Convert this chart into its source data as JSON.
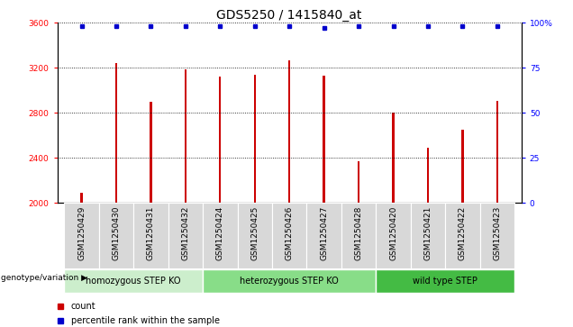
{
  "title": "GDS5250 / 1415840_at",
  "samples": [
    "GSM1250429",
    "GSM1250430",
    "GSM1250431",
    "GSM1250432",
    "GSM1250424",
    "GSM1250425",
    "GSM1250426",
    "GSM1250427",
    "GSM1250428",
    "GSM1250420",
    "GSM1250421",
    "GSM1250422",
    "GSM1250423"
  ],
  "counts": [
    2090,
    3240,
    2900,
    3190,
    3120,
    3140,
    3270,
    3130,
    2370,
    2800,
    2490,
    2650,
    2910
  ],
  "percentiles": [
    98,
    98,
    98,
    98,
    98,
    98,
    98,
    97,
    98,
    98,
    98,
    98,
    98
  ],
  "ymin": 2000,
  "ymax": 3600,
  "yticks": [
    2000,
    2400,
    2800,
    3200,
    3600
  ],
  "right_yticks": [
    0,
    25,
    50,
    75,
    100
  ],
  "right_yticklabels": [
    "0",
    "25",
    "50",
    "75",
    "100%"
  ],
  "bar_color": "#cc0000",
  "dot_color": "#0000cc",
  "groups": [
    {
      "label": "homozygous STEP KO",
      "start": 0,
      "end": 4,
      "color": "#cceecc"
    },
    {
      "label": "heterozygous STEP KO",
      "start": 4,
      "end": 9,
      "color": "#88dd88"
    },
    {
      "label": "wild type STEP",
      "start": 9,
      "end": 13,
      "color": "#44bb44"
    }
  ],
  "group_label": "genotype/variation",
  "legend_count_label": "count",
  "legend_pct_label": "percentile rank within the sample",
  "title_fontsize": 10,
  "tick_fontsize": 6.5,
  "background_color": "#ffffff",
  "plot_bg_color": "#ffffff",
  "grid_color": "#000000",
  "bar_width": 0.06,
  "cell_color": "#d8d8d8"
}
